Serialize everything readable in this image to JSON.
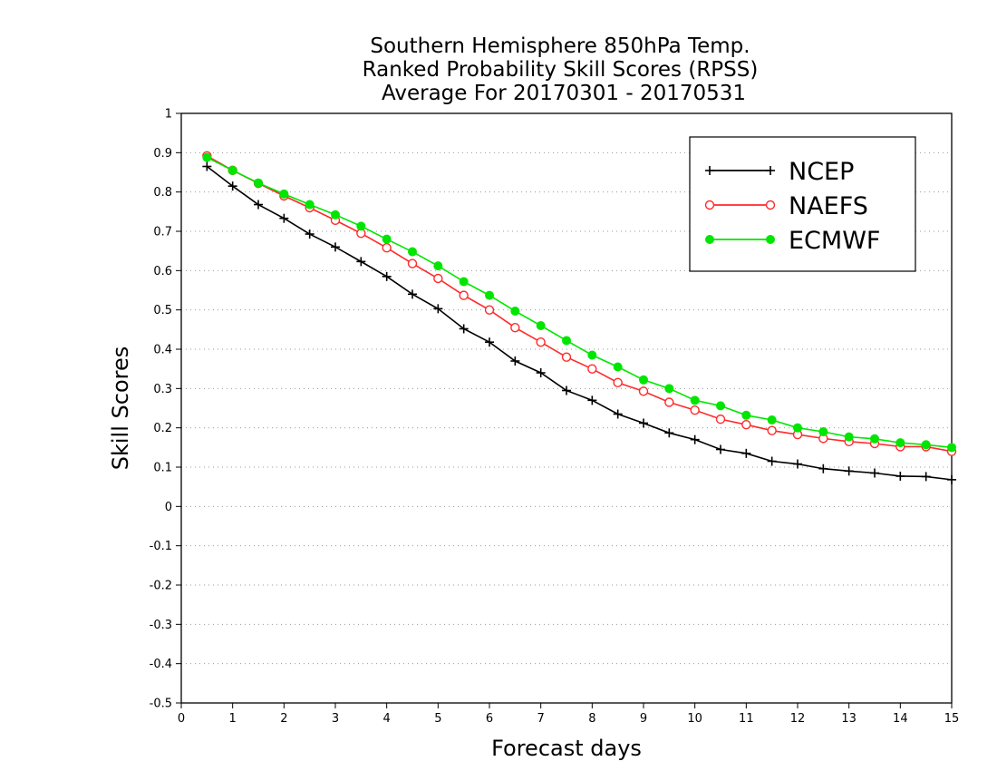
{
  "chart_data": {
    "type": "line",
    "title": [
      "Southern Hemisphere 850hPa Temp.",
      "Ranked Probability Skill Scores (RPSS)",
      "Average For 20170301 - 20170531"
    ],
    "xlabel": "Forecast days",
    "ylabel": "Skill Scores",
    "xlim": [
      0,
      15
    ],
    "ylim": [
      -0.5,
      1
    ],
    "xticks": [
      0,
      1,
      2,
      3,
      4,
      5,
      6,
      7,
      8,
      9,
      10,
      11,
      12,
      13,
      14,
      15
    ],
    "yticks": [
      -0.5,
      -0.4,
      -0.3,
      -0.2,
      -0.1,
      0,
      0.1,
      0.2,
      0.3,
      0.4,
      0.5,
      0.6,
      0.7,
      0.8,
      0.9,
      1
    ],
    "grid": "horizontal dotted",
    "legend_position": "top-right",
    "x": [
      0.5,
      1,
      1.5,
      2,
      2.5,
      3,
      3.5,
      4,
      4.5,
      5,
      5.5,
      6,
      6.5,
      7,
      7.5,
      8,
      8.5,
      9,
      9.5,
      10,
      10.5,
      11,
      11.5,
      12,
      12.5,
      13,
      13.5,
      14,
      14.5,
      15
    ],
    "series": [
      {
        "name": "NCEP",
        "color": "#000000",
        "marker": "plus",
        "values": [
          0.865,
          0.815,
          0.768,
          0.733,
          0.693,
          0.66,
          0.623,
          0.585,
          0.54,
          0.503,
          0.452,
          0.418,
          0.37,
          0.34,
          0.295,
          0.27,
          0.235,
          0.212,
          0.187,
          0.17,
          0.145,
          0.135,
          0.115,
          0.108,
          0.096,
          0.09,
          0.085,
          0.077,
          0.076,
          0.068
        ]
      },
      {
        "name": "NAEFS",
        "color": "#ff2a2a",
        "marker": "open-circle",
        "values": [
          0.892,
          0.855,
          0.822,
          0.79,
          0.76,
          0.728,
          0.695,
          0.658,
          0.618,
          0.58,
          0.537,
          0.5,
          0.455,
          0.418,
          0.38,
          0.35,
          0.315,
          0.293,
          0.265,
          0.245,
          0.222,
          0.208,
          0.193,
          0.183,
          0.173,
          0.165,
          0.16,
          0.152,
          0.152,
          0.14
        ]
      },
      {
        "name": "ECMWF",
        "color": "#00e600",
        "marker": "filled-circle",
        "values": [
          0.888,
          0.855,
          0.823,
          0.795,
          0.768,
          0.742,
          0.713,
          0.68,
          0.648,
          0.612,
          0.572,
          0.537,
          0.497,
          0.46,
          0.422,
          0.385,
          0.355,
          0.322,
          0.3,
          0.27,
          0.256,
          0.232,
          0.22,
          0.2,
          0.19,
          0.177,
          0.172,
          0.162,
          0.157,
          0.15
        ]
      }
    ]
  }
}
